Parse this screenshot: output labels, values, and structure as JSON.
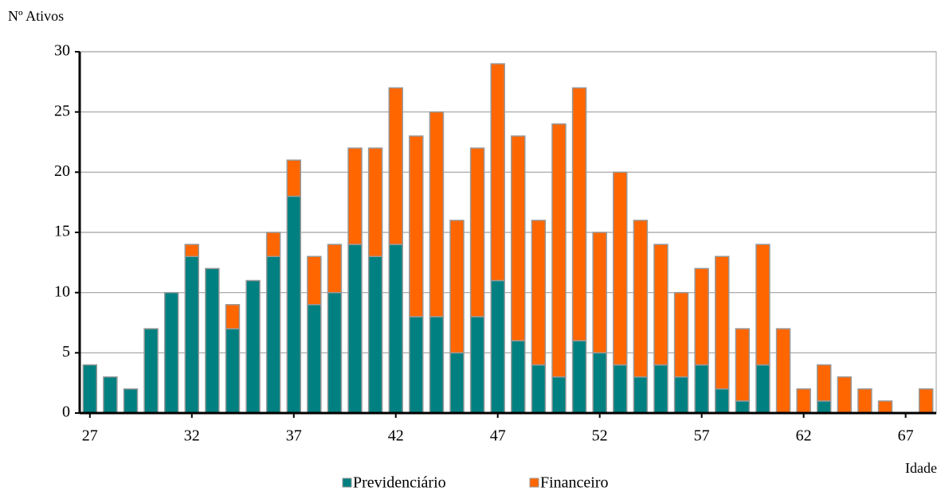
{
  "chart_data": {
    "type": "stacked-bar",
    "y_label": "Nº Ativos",
    "x_label": "Idade",
    "categories": [
      "27",
      null,
      null,
      null,
      null,
      "32",
      null,
      null,
      null,
      null,
      "37",
      null,
      null,
      null,
      null,
      "42",
      null,
      null,
      null,
      null,
      "47",
      null,
      null,
      null,
      null,
      "52",
      null,
      null,
      null,
      null,
      "57",
      null,
      null,
      null,
      null,
      "62",
      null,
      null,
      null,
      null,
      "67",
      null
    ],
    "series": [
      {
        "name": "Previdenciário",
        "color": "#008080",
        "values": [
          4,
          3,
          2,
          7,
          10,
          13,
          12,
          7,
          11,
          13,
          18,
          9,
          10,
          14,
          13,
          14,
          8,
          8,
          5,
          8,
          11,
          6,
          4,
          3,
          6,
          5,
          4,
          3,
          4,
          3,
          4,
          2,
          1,
          4,
          0,
          0,
          1,
          0,
          0,
          0,
          0,
          0
        ]
      },
      {
        "name": "Financeiro",
        "color": "#ff6600",
        "values": [
          0,
          0,
          0,
          0,
          0,
          1,
          0,
          2,
          0,
          2,
          3,
          4,
          4,
          8,
          9,
          13,
          15,
          17,
          11,
          14,
          18,
          17,
          12,
          21,
          21,
          10,
          16,
          13,
          10,
          7,
          8,
          11,
          6,
          10,
          7,
          2,
          3,
          3,
          2,
          1,
          0,
          2
        ]
      }
    ],
    "ylim": [
      0,
      30
    ],
    "yticks": [
      0,
      5,
      10,
      15,
      20,
      25,
      30
    ],
    "grid": true,
    "legend": "bottom"
  }
}
